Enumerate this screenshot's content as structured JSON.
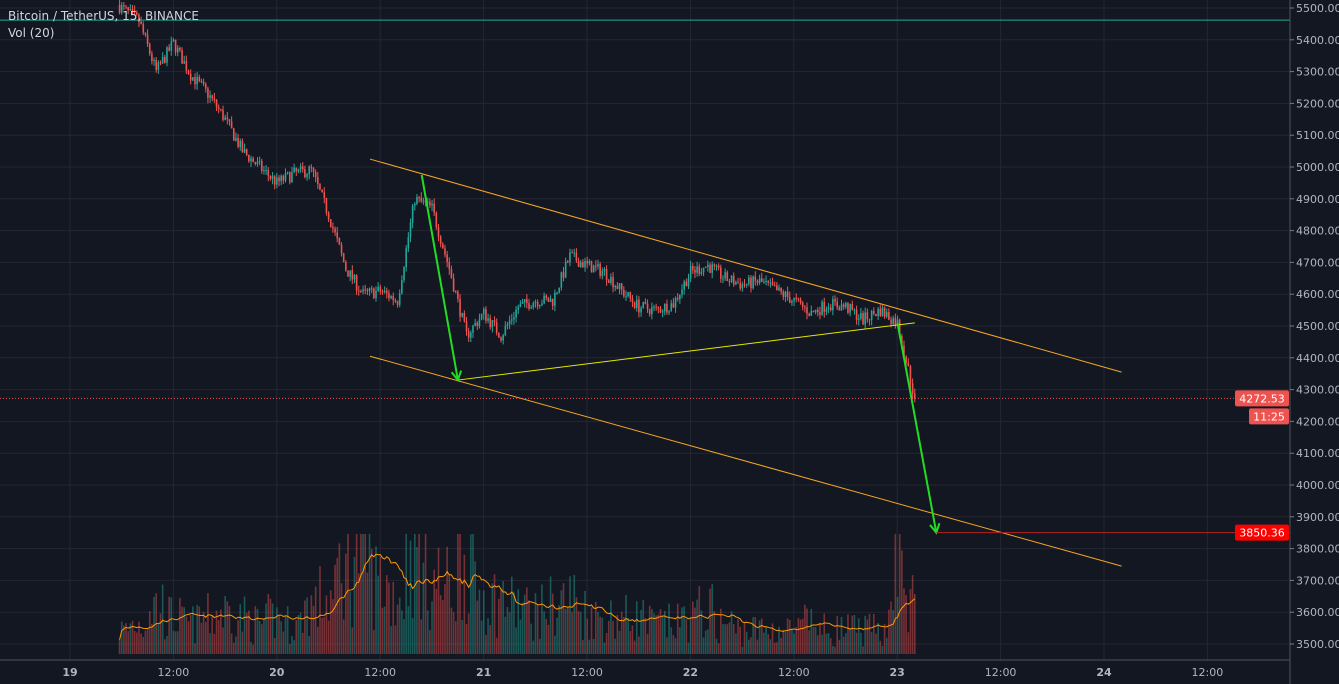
{
  "header": {
    "symbol_title": "Bitcoin / TetherUS, 15, BINANCE",
    "volume_label": "Vol (20)"
  },
  "colors": {
    "background": "#131722",
    "grid": "#242733",
    "up": "#26a69a",
    "down": "#ef5350",
    "channel": "#f5a623",
    "support": "#e6e600",
    "arrow": "#22dd22",
    "target": "#ff0000",
    "resistance": "#26a69a"
  },
  "chart_data": {
    "type": "candlestick",
    "title": "Bitcoin / TetherUS, 15, BINANCE",
    "ylim": [
      3450,
      5530
    ],
    "y_ticks": [
      "5500.00",
      "5400.00",
      "5300.00",
      "5200.00",
      "5100.00",
      "5000.00",
      "4900.00",
      "4800.00",
      "4700.00",
      "4600.00",
      "4500.00",
      "4400.00",
      "4300.00",
      "4200.00",
      "4100.00",
      "4000.00",
      "3900.00",
      "3800.00",
      "3700.00",
      "3600.00",
      "3500.00"
    ],
    "x_ticks": [
      "19",
      "12:00",
      "20",
      "12:00",
      "21",
      "12:00",
      "22",
      "12:00",
      "23",
      "12:00",
      "24",
      "12:00"
    ],
    "close_series": [
      [
        "19 06:00",
        5500
      ],
      [
        "19 08:00",
        5460
      ],
      [
        "19 10:00",
        5300
      ],
      [
        "19 12:00",
        5390
      ],
      [
        "19 14:00",
        5290
      ],
      [
        "19 16:00",
        5230
      ],
      [
        "19 18:00",
        5150
      ],
      [
        "19 20:00",
        5050
      ],
      [
        "19 22:00",
        5000
      ],
      [
        "20 00:00",
        4950
      ],
      [
        "20 02:00",
        4980
      ],
      [
        "20 04:00",
        4990
      ],
      [
        "20 06:00",
        4850
      ],
      [
        "20 08:00",
        4680
      ],
      [
        "20 10:00",
        4600
      ],
      [
        "20 12:00",
        4610
      ],
      [
        "20 14:00",
        4580
      ],
      [
        "20 16:00",
        4900
      ],
      [
        "20 18:00",
        4870
      ],
      [
        "20 20:00",
        4680
      ],
      [
        "20 22:00",
        4470
      ],
      [
        "21 00:00",
        4540
      ],
      [
        "21 02:00",
        4470
      ],
      [
        "21 04:00",
        4560
      ],
      [
        "21 06:00",
        4580
      ],
      [
        "21 08:00",
        4580
      ],
      [
        "21 10:00",
        4720
      ],
      [
        "21 12:00",
        4690
      ],
      [
        "21 14:00",
        4670
      ],
      [
        "21 16:00",
        4610
      ],
      [
        "21 18:00",
        4560
      ],
      [
        "21 20:00",
        4550
      ],
      [
        "21 22:00",
        4570
      ],
      [
        "22 00:00",
        4670
      ],
      [
        "22 02:00",
        4690
      ],
      [
        "22 04:00",
        4650
      ],
      [
        "22 06:00",
        4630
      ],
      [
        "22 08:00",
        4640
      ],
      [
        "22 10:00",
        4610
      ],
      [
        "22 12:00",
        4580
      ],
      [
        "22 14:00",
        4540
      ],
      [
        "22 16:00",
        4570
      ],
      [
        "22 18:00",
        4560
      ],
      [
        "22 20:00",
        4520
      ],
      [
        "22 22:00",
        4550
      ],
      [
        "23 00:00",
        4510
      ],
      [
        "23 02:00",
        4272.53
      ]
    ],
    "volume_relative": [
      20,
      25,
      40,
      30,
      25,
      30,
      35,
      30,
      25,
      30,
      25,
      40,
      45,
      70,
      90,
      60,
      50,
      85,
      60,
      55,
      80,
      50,
      45,
      40,
      35,
      40,
      45,
      35,
      30,
      30,
      30,
      25,
      25,
      30,
      35,
      25,
      20,
      20,
      20,
      20,
      25,
      20,
      20,
      20,
      20,
      80,
      40
    ],
    "current_price": "4272.53",
    "countdown": "11:25",
    "target_price": "3850.36",
    "resistance_level": 5462,
    "drawings": {
      "channel_upper": [
        [
          "20 10:48",
          5025
        ],
        [
          "24 02:00",
          4355
        ]
      ],
      "channel_lower": [
        [
          "20 10:48",
          4405
        ],
        [
          "24 02:00",
          3745
        ]
      ],
      "support_line": [
        [
          "20 21:00",
          4330
        ],
        [
          "23 02:00",
          4510
        ]
      ],
      "arrow_1": [
        [
          "20 16:48",
          4975
        ],
        [
          "20 21:00",
          4330
        ]
      ],
      "arrow_2": [
        [
          "23 00:00",
          4510
        ],
        [
          "23 04:30",
          3850
        ]
      ]
    }
  }
}
